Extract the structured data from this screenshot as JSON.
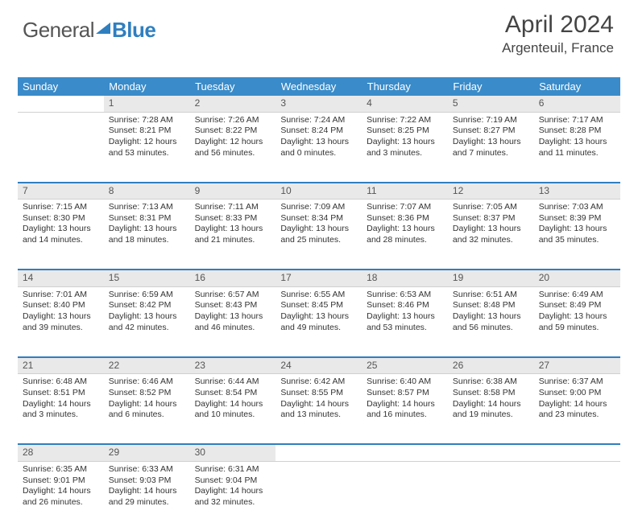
{
  "brand": {
    "text1": "General",
    "text2": "Blue"
  },
  "header": {
    "title": "April 2024",
    "location": "Argenteuil, France"
  },
  "colors": {
    "headerBar": "#3a8bc9",
    "accent": "#2f7fbf",
    "dayNumBg": "#e9e9e9",
    "text": "#333"
  },
  "dayNames": [
    "Sunday",
    "Monday",
    "Tuesday",
    "Wednesday",
    "Thursday",
    "Friday",
    "Saturday"
  ],
  "weeks": [
    {
      "nums": [
        "",
        "1",
        "2",
        "3",
        "4",
        "5",
        "6"
      ],
      "cells": [
        "",
        "Sunrise: 7:28 AM\nSunset: 8:21 PM\nDaylight: 12 hours and 53 minutes.",
        "Sunrise: 7:26 AM\nSunset: 8:22 PM\nDaylight: 12 hours and 56 minutes.",
        "Sunrise: 7:24 AM\nSunset: 8:24 PM\nDaylight: 13 hours and 0 minutes.",
        "Sunrise: 7:22 AM\nSunset: 8:25 PM\nDaylight: 13 hours and 3 minutes.",
        "Sunrise: 7:19 AM\nSunset: 8:27 PM\nDaylight: 13 hours and 7 minutes.",
        "Sunrise: 7:17 AM\nSunset: 8:28 PM\nDaylight: 13 hours and 11 minutes."
      ]
    },
    {
      "nums": [
        "7",
        "8",
        "9",
        "10",
        "11",
        "12",
        "13"
      ],
      "cells": [
        "Sunrise: 7:15 AM\nSunset: 8:30 PM\nDaylight: 13 hours and 14 minutes.",
        "Sunrise: 7:13 AM\nSunset: 8:31 PM\nDaylight: 13 hours and 18 minutes.",
        "Sunrise: 7:11 AM\nSunset: 8:33 PM\nDaylight: 13 hours and 21 minutes.",
        "Sunrise: 7:09 AM\nSunset: 8:34 PM\nDaylight: 13 hours and 25 minutes.",
        "Sunrise: 7:07 AM\nSunset: 8:36 PM\nDaylight: 13 hours and 28 minutes.",
        "Sunrise: 7:05 AM\nSunset: 8:37 PM\nDaylight: 13 hours and 32 minutes.",
        "Sunrise: 7:03 AM\nSunset: 8:39 PM\nDaylight: 13 hours and 35 minutes."
      ]
    },
    {
      "nums": [
        "14",
        "15",
        "16",
        "17",
        "18",
        "19",
        "20"
      ],
      "cells": [
        "Sunrise: 7:01 AM\nSunset: 8:40 PM\nDaylight: 13 hours and 39 minutes.",
        "Sunrise: 6:59 AM\nSunset: 8:42 PM\nDaylight: 13 hours and 42 minutes.",
        "Sunrise: 6:57 AM\nSunset: 8:43 PM\nDaylight: 13 hours and 46 minutes.",
        "Sunrise: 6:55 AM\nSunset: 8:45 PM\nDaylight: 13 hours and 49 minutes.",
        "Sunrise: 6:53 AM\nSunset: 8:46 PM\nDaylight: 13 hours and 53 minutes.",
        "Sunrise: 6:51 AM\nSunset: 8:48 PM\nDaylight: 13 hours and 56 minutes.",
        "Sunrise: 6:49 AM\nSunset: 8:49 PM\nDaylight: 13 hours and 59 minutes."
      ]
    },
    {
      "nums": [
        "21",
        "22",
        "23",
        "24",
        "25",
        "26",
        "27"
      ],
      "cells": [
        "Sunrise: 6:48 AM\nSunset: 8:51 PM\nDaylight: 14 hours and 3 minutes.",
        "Sunrise: 6:46 AM\nSunset: 8:52 PM\nDaylight: 14 hours and 6 minutes.",
        "Sunrise: 6:44 AM\nSunset: 8:54 PM\nDaylight: 14 hours and 10 minutes.",
        "Sunrise: 6:42 AM\nSunset: 8:55 PM\nDaylight: 14 hours and 13 minutes.",
        "Sunrise: 6:40 AM\nSunset: 8:57 PM\nDaylight: 14 hours and 16 minutes.",
        "Sunrise: 6:38 AM\nSunset: 8:58 PM\nDaylight: 14 hours and 19 minutes.",
        "Sunrise: 6:37 AM\nSunset: 9:00 PM\nDaylight: 14 hours and 23 minutes."
      ]
    },
    {
      "nums": [
        "28",
        "29",
        "30",
        "",
        "",
        "",
        ""
      ],
      "cells": [
        "Sunrise: 6:35 AM\nSunset: 9:01 PM\nDaylight: 14 hours and 26 minutes.",
        "Sunrise: 6:33 AM\nSunset: 9:03 PM\nDaylight: 14 hours and 29 minutes.",
        "Sunrise: 6:31 AM\nSunset: 9:04 PM\nDaylight: 14 hours and 32 minutes.",
        "",
        "",
        "",
        ""
      ]
    }
  ]
}
